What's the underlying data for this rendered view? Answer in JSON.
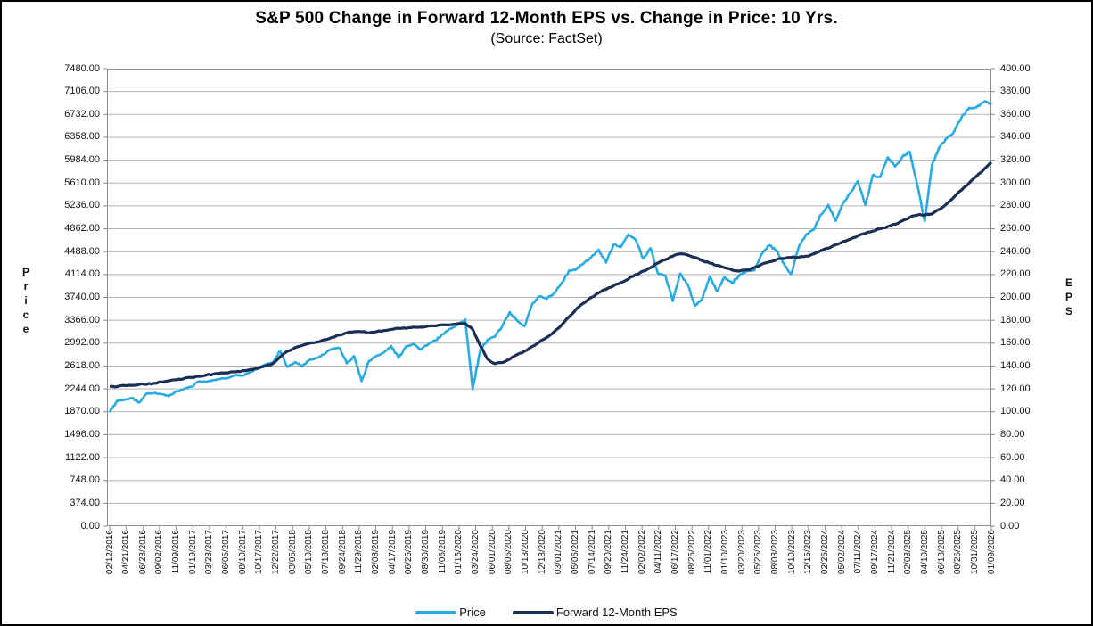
{
  "title": "S&P 500 Change in Forward 12-Month EPS vs. Change in Price: 10 Yrs.",
  "subtitle": "(Source: FactSet)",
  "left_axis": {
    "label": "Price",
    "ticks": [
      "7480.00",
      "7106.00",
      "6732.00",
      "6358.00",
      "5984.00",
      "5610.00",
      "5236.00",
      "4862.00",
      "4488.00",
      "4114.00",
      "3740.00",
      "3366.00",
      "2992.00",
      "2618.00",
      "2244.00",
      "1870.00",
      "1496.00",
      "1122.00",
      "748.00",
      "374.00",
      "0.00"
    ]
  },
  "right_axis": {
    "label": "EPS",
    "ticks": [
      "400.00",
      "380.00",
      "360.00",
      "340.00",
      "320.00",
      "300.00",
      "280.00",
      "260.00",
      "240.00",
      "220.00",
      "200.00",
      "180.00",
      "160.00",
      "140.00",
      "120.00",
      "100.00",
      "80.00",
      "60.00",
      "40.00",
      "20.00",
      "0.00"
    ]
  },
  "x_axis": {
    "ticks": [
      "02/12/2016",
      "04/21/2016",
      "06/28/2016",
      "09/02/2016",
      "11/09/2016",
      "01/19/2017",
      "03/28/2017",
      "06/05/2017",
      "08/10/2017",
      "10/17/2017",
      "12/22/2017",
      "03/05/2018",
      "05/10/2018",
      "07/18/2018",
      "09/24/2018",
      "11/29/2018",
      "02/08/2019",
      "04/17/2019",
      "06/25/2019",
      "08/30/2019",
      "11/06/2019",
      "01/15/2020",
      "03/24/2020",
      "06/01/2020",
      "08/06/2020",
      "10/13/2020",
      "12/18/2020",
      "03/01/2021",
      "05/06/2021",
      "07/14/2021",
      "09/20/2021",
      "11/24/2021",
      "02/02/2022",
      "04/11/2022",
      "06/17/2022",
      "08/25/2022",
      "11/01/2022",
      "01/10/2023",
      "03/20/2023",
      "05/25/2023",
      "08/03/2023",
      "10/10/2023",
      "12/15/2023",
      "02/26/2024",
      "05/02/2024",
      "07/11/2024",
      "09/17/2024",
      "11/21/2024",
      "02/03/2025",
      "04/10/2025",
      "06/18/2025",
      "08/26/2025",
      "10/31/2025",
      "01/09/2026"
    ]
  },
  "legend": [
    {
      "label": "Price",
      "color": "#29ABE2"
    },
    {
      "label": "Forward 12-Month EPS",
      "color": "#1A2F55"
    }
  ],
  "colors": {
    "price_line": "#29ABE2",
    "eps_line": "#1A2F55",
    "gridline": "#b3b3b3",
    "plot_border": "#8c8c8c"
  },
  "chart_data": {
    "type": "line",
    "title": "S&P 500 Change in Forward 12-Month EPS vs. Change in Price: 10 Yrs.",
    "subtitle": "(Source: FactSet)",
    "grid": true,
    "legend_position": "bottom",
    "left_ylim": [
      0,
      7480
    ],
    "right_ylim": [
      0,
      400
    ],
    "x": [
      "2016-02",
      "2016-03",
      "2016-04",
      "2016-05",
      "2016-06",
      "2016-07",
      "2016-08",
      "2016-09",
      "2016-10",
      "2016-11",
      "2016-12",
      "2017-01",
      "2017-02",
      "2017-03",
      "2017-04",
      "2017-05",
      "2017-06",
      "2017-07",
      "2017-08",
      "2017-09",
      "2017-10",
      "2017-11",
      "2017-12",
      "2018-01",
      "2018-02",
      "2018-03",
      "2018-04",
      "2018-05",
      "2018-06",
      "2018-07",
      "2018-08",
      "2018-09",
      "2018-10",
      "2018-11",
      "2018-12",
      "2019-01",
      "2019-02",
      "2019-03",
      "2019-04",
      "2019-05",
      "2019-06",
      "2019-07",
      "2019-08",
      "2019-09",
      "2019-10",
      "2019-11",
      "2019-12",
      "2020-01",
      "2020-02",
      "2020-03",
      "2020-04",
      "2020-05",
      "2020-06",
      "2020-07",
      "2020-08",
      "2020-09",
      "2020-10",
      "2020-11",
      "2020-12",
      "2021-01",
      "2021-02",
      "2021-03",
      "2021-04",
      "2021-05",
      "2021-06",
      "2021-07",
      "2021-08",
      "2021-09",
      "2021-10",
      "2021-11",
      "2021-12",
      "2022-01",
      "2022-02",
      "2022-03",
      "2022-04",
      "2022-05",
      "2022-06",
      "2022-07",
      "2022-08",
      "2022-09",
      "2022-10",
      "2022-11",
      "2022-12",
      "2023-01",
      "2023-02",
      "2023-03",
      "2023-04",
      "2023-05",
      "2023-06",
      "2023-07",
      "2023-08",
      "2023-09",
      "2023-10",
      "2023-11",
      "2023-12",
      "2024-01",
      "2024-02",
      "2024-03",
      "2024-04",
      "2024-05",
      "2024-06",
      "2024-07",
      "2024-08",
      "2024-09",
      "2024-10",
      "2024-11",
      "2024-12",
      "2025-01",
      "2025-02",
      "2025-03",
      "2025-04",
      "2025-05",
      "2025-06",
      "2025-07",
      "2025-08",
      "2025-09",
      "2025-10",
      "2025-11",
      "2025-12",
      "2026-01"
    ],
    "series": [
      {
        "name": "Price",
        "axis": "left",
        "color": "#29ABE2",
        "values": [
          1865,
          2050,
          2065,
          2095,
          2020,
          2170,
          2175,
          2160,
          2125,
          2200,
          2240,
          2280,
          2365,
          2360,
          2385,
          2410,
          2425,
          2470,
          2460,
          2520,
          2575,
          2645,
          2675,
          2870,
          2605,
          2680,
          2620,
          2720,
          2750,
          2815,
          2900,
          2915,
          2660,
          2780,
          2370,
          2700,
          2785,
          2835,
          2945,
          2750,
          2940,
          2980,
          2890,
          2975,
          3040,
          3140,
          3230,
          3290,
          3380,
          2237,
          2870,
          3050,
          3100,
          3270,
          3500,
          3360,
          3270,
          3620,
          3755,
          3715,
          3810,
          3975,
          4180,
          4200,
          4300,
          4395,
          4520,
          4310,
          4605,
          4565,
          4766,
          4680,
          4375,
          4545,
          4130,
          4100,
          3680,
          4130,
          3955,
          3600,
          3720,
          4080,
          3840,
          4070,
          3970,
          4105,
          4170,
          4180,
          4450,
          4590,
          4510,
          4290,
          4120,
          4565,
          4770,
          4845,
          5095,
          5255,
          4990,
          5280,
          5460,
          5640,
          5250,
          5740,
          5705,
          6030,
          5880,
          6040,
          6120,
          5580,
          4990,
          5910,
          6200,
          6340,
          6460,
          6690,
          6840,
          6850,
          6940,
          6900
        ]
      },
      {
        "name": "Forward 12-Month EPS",
        "axis": "right",
        "color": "#1A2F55",
        "values": [
          122,
          122,
          123,
          123,
          124,
          124,
          125,
          126,
          127,
          128,
          129,
          130,
          131,
          132,
          133,
          134,
          134,
          135,
          136,
          137,
          138,
          140,
          142,
          148,
          153,
          156,
          158,
          160,
          161,
          163,
          165,
          167,
          169,
          170,
          170,
          169,
          170,
          171,
          172,
          173,
          173,
          174,
          174,
          175,
          175,
          176,
          176,
          177,
          177,
          172,
          158,
          146,
          142,
          143,
          146,
          150,
          153,
          157,
          161,
          165,
          170,
          176,
          183,
          190,
          195,
          200,
          204,
          207,
          210,
          213,
          216,
          220,
          223,
          226,
          230,
          233,
          236,
          238,
          237,
          235,
          232,
          230,
          228,
          226,
          224,
          223,
          224,
          226,
          229,
          231,
          233,
          234,
          235,
          235,
          236,
          238,
          241,
          243,
          246,
          249,
          251,
          254,
          256,
          258,
          260,
          262,
          264,
          267,
          270,
          272,
          272,
          273,
          277,
          282,
          288,
          294,
          300,
          306,
          312,
          318
        ]
      }
    ]
  }
}
